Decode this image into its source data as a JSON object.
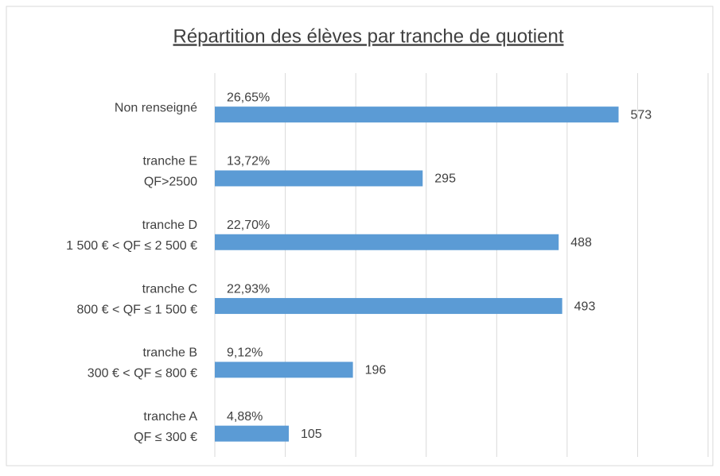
{
  "chart_data": {
    "type": "bar",
    "orientation": "horizontal",
    "title": "Répartition des élèves par tranche de quotient",
    "categories": [
      [
        "Non renseigné"
      ],
      [
        "tranche E",
        "QF>2500"
      ],
      [
        "tranche D",
        "1 500 €  < QF ≤  2 500 €"
      ],
      [
        "tranche C",
        "800 €  < QF ≤ 1 500 €"
      ],
      [
        "tranche B",
        "300 €  < QF ≤ 800 €"
      ],
      [
        "tranche A",
        "QF ≤ 300 €"
      ]
    ],
    "values": [
      573,
      295,
      488,
      493,
      196,
      105
    ],
    "percent_labels": [
      "26,65%",
      "13,72%",
      "22,70%",
      "22,93%",
      "9,12%",
      "4,88%"
    ],
    "color": "#5b9bd5",
    "xlim": [
      0,
      700
    ],
    "xticks": [
      0,
      100,
      200,
      300,
      400,
      500,
      600,
      700
    ],
    "grid": true
  }
}
